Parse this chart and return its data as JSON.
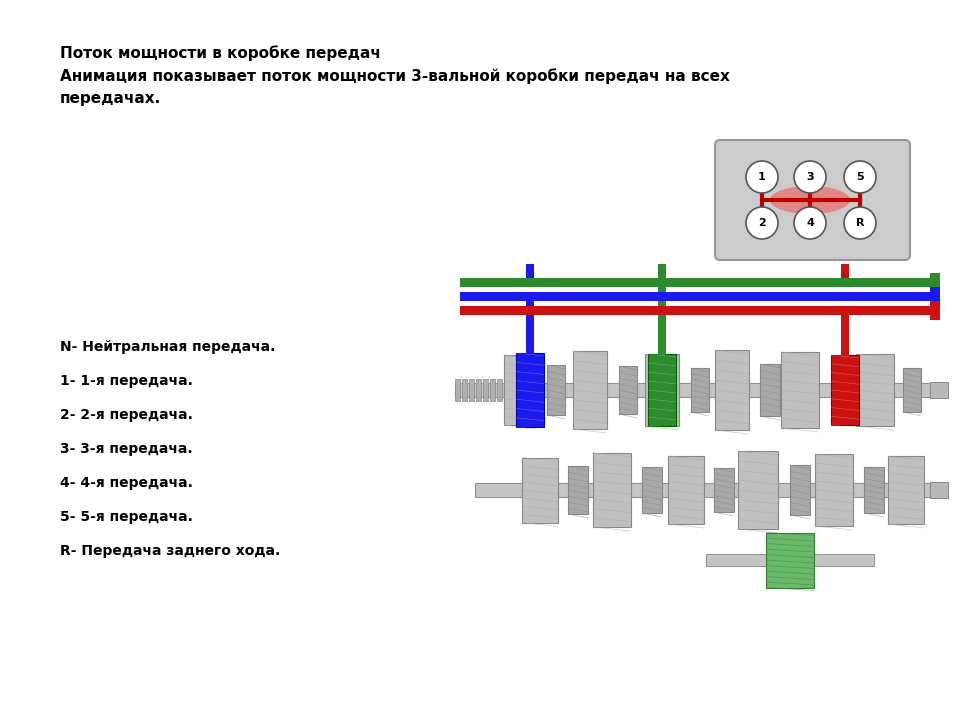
{
  "title_line1": "Поток мощности в коробке передач",
  "title_line2": "Анимация показывает поток мощности 3-вальной коробки передач на всех",
  "title_line3": "передачах.",
  "legend_items": [
    "N- Нейтральная передача.",
    "1- 1-я передача.",
    "2- 2-я передача.",
    "3- 3-я передача.",
    "4- 4-я передача.",
    "5- 5-я передача.",
    "R- Передача заднего хода."
  ],
  "gear_labels_top": [
    "1",
    "3",
    "5"
  ],
  "gear_labels_bottom": [
    "2",
    "4",
    "R"
  ],
  "color_green": "#2d8a2d",
  "color_blue": "#1a1aee",
  "color_red": "#cc1111",
  "gear_color_light": "#c0c0c0",
  "gear_color_mid": "#a8a8a8",
  "gear_color_dark": "#888888",
  "gear_color_darker": "#707070",
  "gear_green_fill": "#6ab86a",
  "gear_green_edge": "#3a7a3a",
  "background_color": "#ffffff",
  "text_color": "#000000",
  "shift_box_color": "#cccccc",
  "shift_box_edge": "#999999",
  "font_size_title": 11,
  "font_size_legend": 10,
  "font_size_gear_label": 8
}
